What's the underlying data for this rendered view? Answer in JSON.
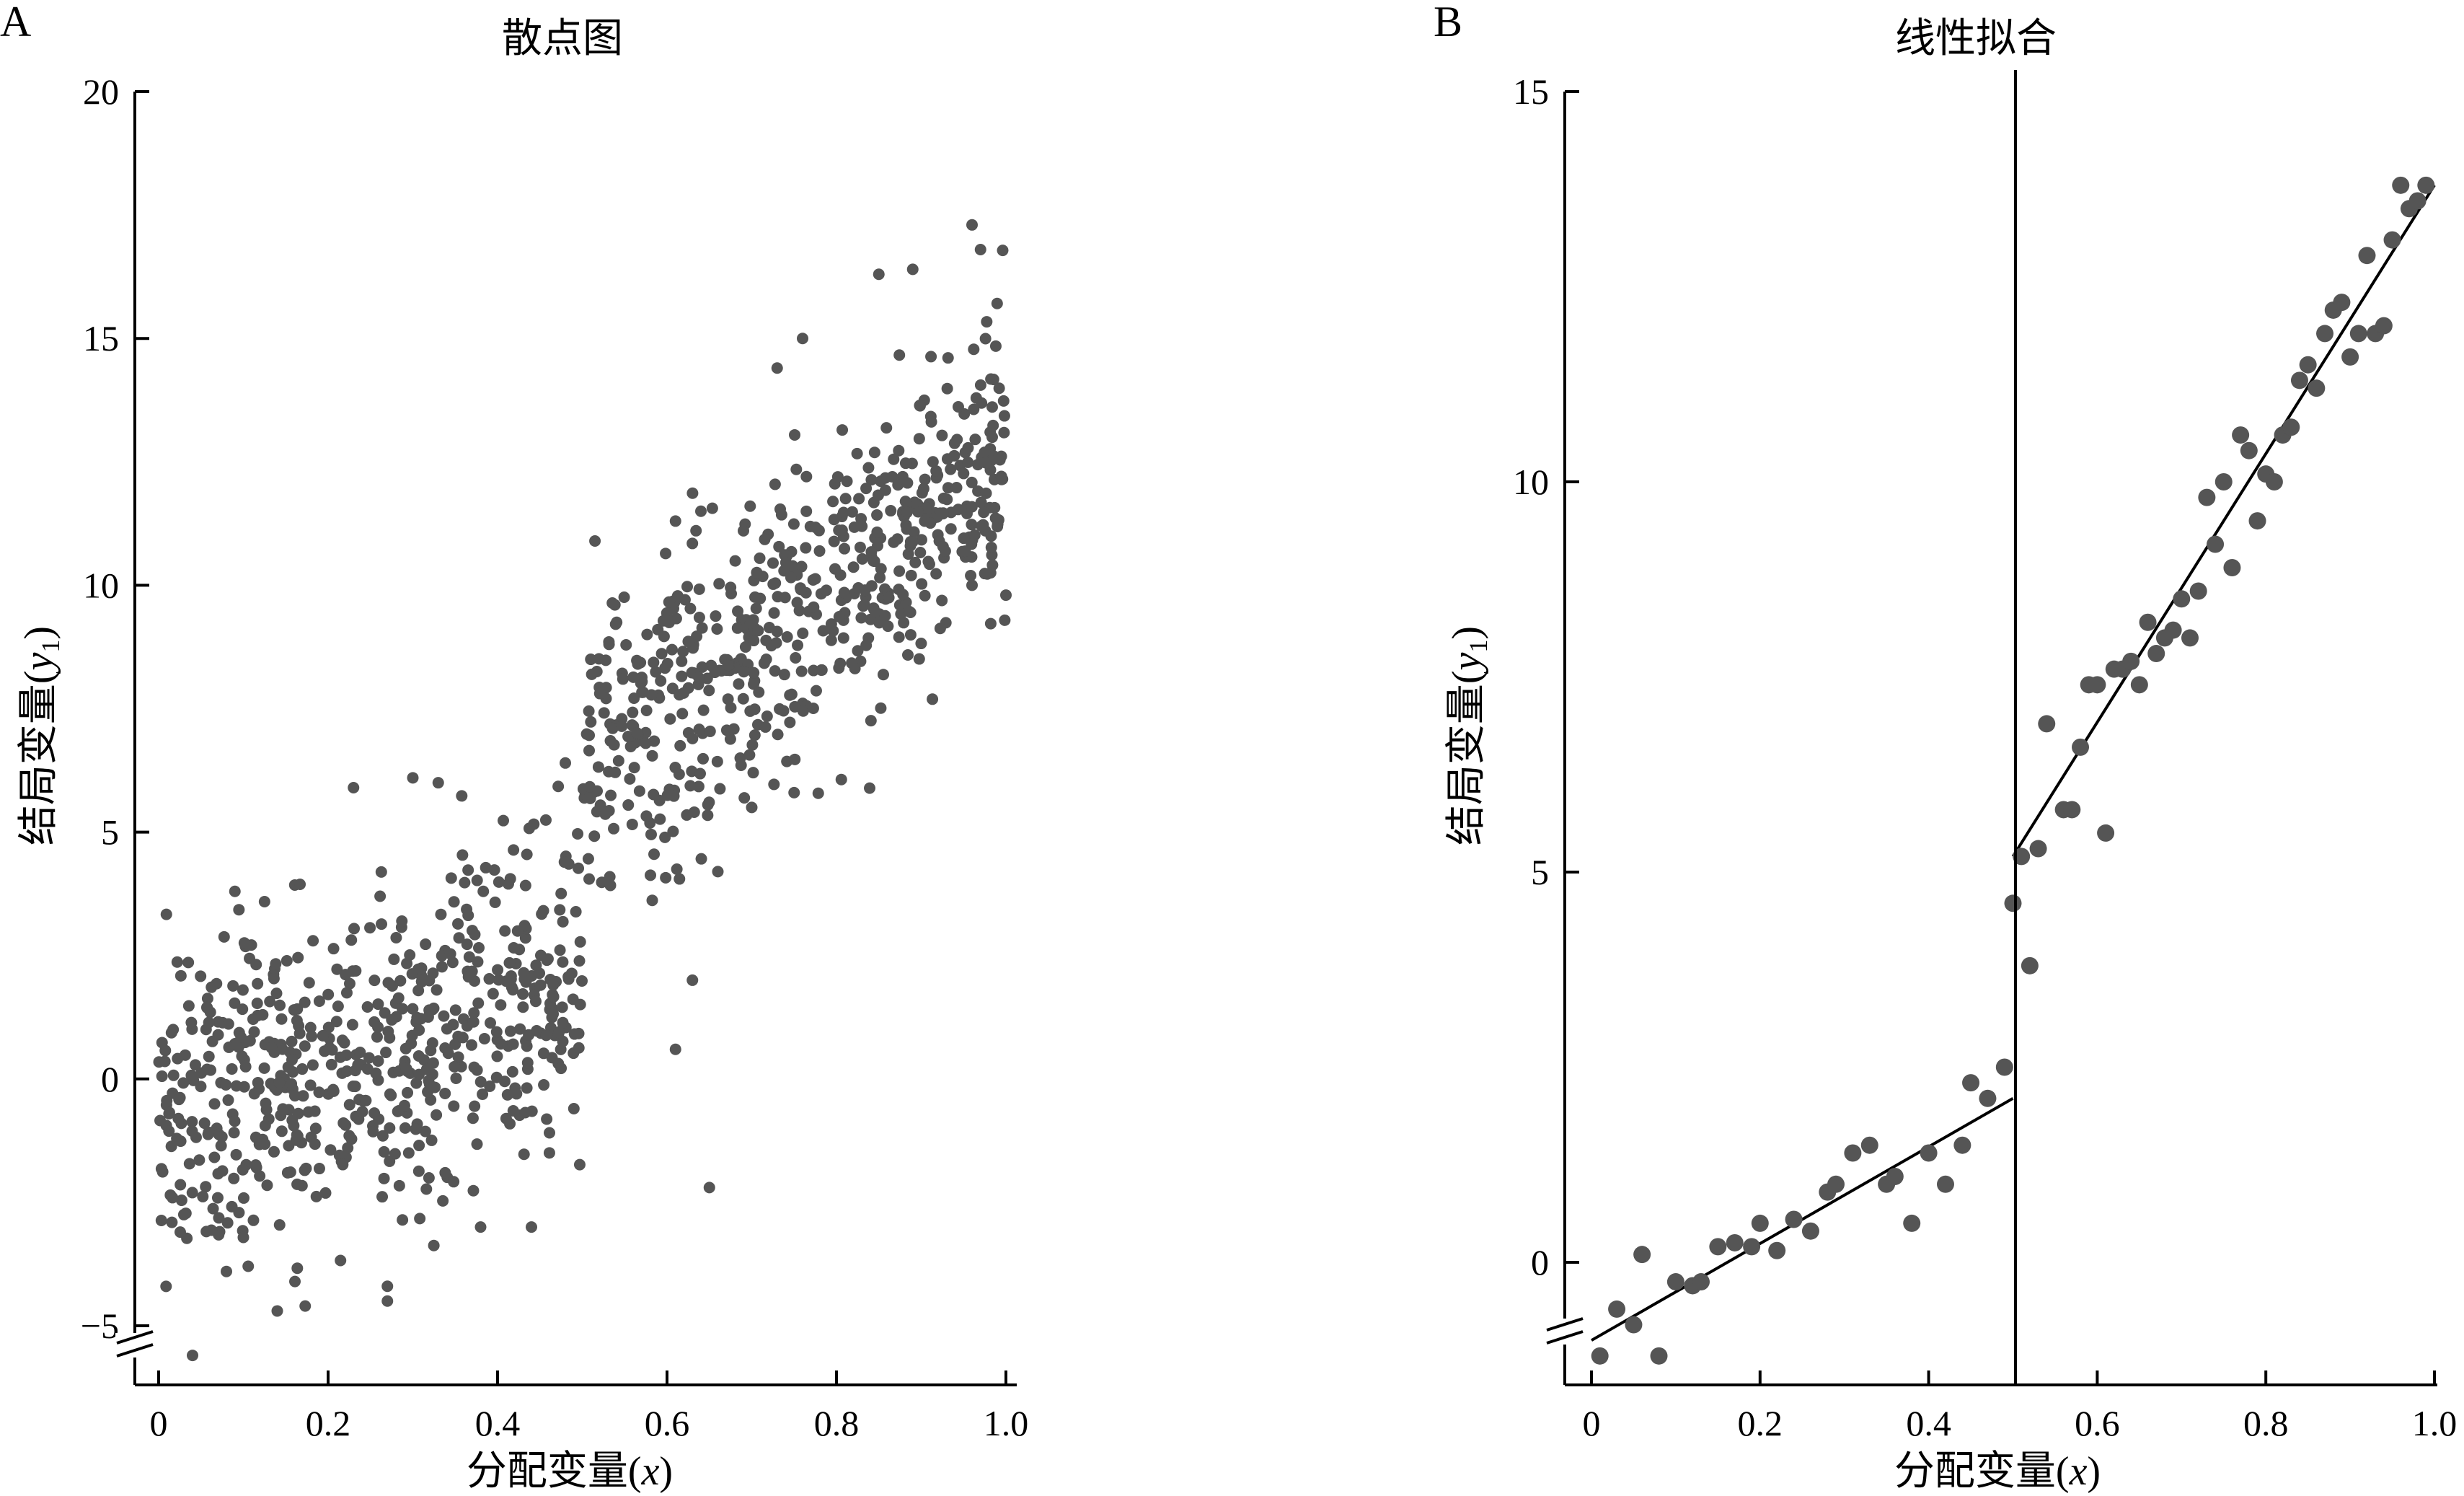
{
  "figure": {
    "panels": [
      {
        "letter": "A",
        "title": "散点图"
      },
      {
        "letter": "B",
        "title": "线性拟合"
      }
    ]
  },
  "chart_data": [
    {
      "type": "scatter",
      "title": "散点图",
      "xlabel": "分配变量",
      "xlabel_var": "x",
      "ylabel": "结局变量",
      "ylabel_var": "y",
      "ylabel_sub": "1",
      "xlim": [
        0,
        1.0
      ],
      "ylim": [
        -5,
        20
      ],
      "xticks": [
        0,
        0.2,
        0.4,
        0.6,
        0.8,
        1.0
      ],
      "xtick_labels": [
        "0",
        "0.2",
        "0.4",
        "0.6",
        "0.8",
        "1.0"
      ],
      "yticks": [
        -5,
        0,
        5,
        10,
        15,
        20
      ],
      "ytick_labels": [
        "−5",
        "0",
        "5",
        "10",
        "15",
        "20"
      ],
      "y_axis_break": true,
      "grid": false,
      "point_color": "#555555",
      "generator": {
        "n": 1200,
        "cutoff": 0.5,
        "below": {
          "intercept": -1.0,
          "slope": 6.0,
          "sd": 1.6
        },
        "above": {
          "intercept": 0.5,
          "slope": 12.0,
          "sd": 1.5
        }
      },
      "points": [
        [
          0.04,
          -5.6
        ],
        [
          0.08,
          -3.9
        ],
        [
          0.14,
          -4.7
        ],
        [
          0.27,
          -4.5
        ],
        [
          0.27,
          -4.2
        ],
        [
          0.09,
          3.8
        ],
        [
          0.23,
          5.9
        ],
        [
          0.3,
          6.1
        ],
        [
          0.33,
          6.0
        ],
        [
          0.44,
          -3.0
        ],
        [
          0.38,
          -3.0
        ],
        [
          0.61,
          0.6
        ],
        [
          0.63,
          2.0
        ],
        [
          0.65,
          -2.2
        ],
        [
          0.48,
          6.4
        ],
        [
          0.51,
          8.5
        ],
        [
          0.61,
          11.3
        ],
        [
          0.64,
          11.5
        ],
        [
          0.76,
          15.0
        ],
        [
          0.85,
          16.3
        ],
        [
          0.89,
          16.4
        ],
        [
          0.96,
          17.3
        ],
        [
          0.97,
          16.8
        ],
        [
          0.73,
          14.4
        ],
        [
          0.66,
          4.2
        ],
        [
          0.7,
          5.5
        ],
        [
          0.75,
          5.8
        ],
        [
          0.96,
          10.0
        ],
        [
          1.0,
          9.8
        ]
      ]
    },
    {
      "type": "scatter",
      "title": "线性拟合",
      "xlabel": "分配变量",
      "xlabel_var": "x",
      "ylabel": "结局变量",
      "ylabel_var": "y",
      "ylabel_sub": "1",
      "xlim": [
        0,
        1.0
      ],
      "ylim": [
        -1.5,
        15
      ],
      "xticks": [
        0,
        0.2,
        0.4,
        0.6,
        0.8,
        1.0
      ],
      "xtick_labels": [
        "0",
        "0.2",
        "0.4",
        "0.6",
        "0.8",
        "1.0"
      ],
      "yticks": [
        0,
        5,
        10,
        15
      ],
      "ytick_labels": [
        "0",
        "5",
        "10",
        "15"
      ],
      "y_axis_break": true,
      "grid": false,
      "point_color": "#555555",
      "cutoff": 0.5,
      "fit_lines": [
        {
          "x": [
            0,
            0.5
          ],
          "y": [
            -1.0,
            2.1
          ]
        },
        {
          "x": [
            0.5,
            1.0
          ],
          "y": [
            5.2,
            13.8
          ]
        }
      ],
      "points": [
        [
          0.01,
          -1.2
        ],
        [
          0.03,
          -0.6
        ],
        [
          0.05,
          -0.8
        ],
        [
          0.06,
          0.1
        ],
        [
          0.08,
          -1.2
        ],
        [
          0.1,
          -0.25
        ],
        [
          0.12,
          -0.3
        ],
        [
          0.13,
          -0.25
        ],
        [
          0.15,
          0.2
        ],
        [
          0.17,
          0.25
        ],
        [
          0.19,
          0.2
        ],
        [
          0.2,
          0.5
        ],
        [
          0.22,
          0.15
        ],
        [
          0.24,
          0.55
        ],
        [
          0.26,
          0.4
        ],
        [
          0.28,
          0.9
        ],
        [
          0.29,
          1.0
        ],
        [
          0.31,
          1.4
        ],
        [
          0.33,
          1.5
        ],
        [
          0.35,
          1.0
        ],
        [
          0.36,
          1.1
        ],
        [
          0.38,
          0.5
        ],
        [
          0.4,
          1.4
        ],
        [
          0.42,
          1.0
        ],
        [
          0.44,
          1.5
        ],
        [
          0.45,
          2.3
        ],
        [
          0.47,
          2.1
        ],
        [
          0.49,
          2.5
        ],
        [
          0.5,
          4.6
        ],
        [
          0.51,
          5.2
        ],
        [
          0.52,
          3.8
        ],
        [
          0.53,
          5.3
        ],
        [
          0.54,
          6.9
        ],
        [
          0.56,
          5.8
        ],
        [
          0.57,
          5.8
        ],
        [
          0.58,
          6.6
        ],
        [
          0.59,
          7.4
        ],
        [
          0.6,
          7.4
        ],
        [
          0.61,
          5.5
        ],
        [
          0.62,
          7.6
        ],
        [
          0.63,
          7.6
        ],
        [
          0.64,
          7.7
        ],
        [
          0.65,
          7.4
        ],
        [
          0.66,
          8.2
        ],
        [
          0.67,
          7.8
        ],
        [
          0.68,
          8.0
        ],
        [
          0.69,
          8.1
        ],
        [
          0.7,
          8.5
        ],
        [
          0.71,
          8.0
        ],
        [
          0.72,
          8.6
        ],
        [
          0.73,
          9.8
        ],
        [
          0.74,
          9.2
        ],
        [
          0.75,
          10.0
        ],
        [
          0.76,
          8.9
        ],
        [
          0.77,
          10.6
        ],
        [
          0.78,
          10.4
        ],
        [
          0.79,
          9.5
        ],
        [
          0.8,
          10.1
        ],
        [
          0.81,
          10.0
        ],
        [
          0.82,
          10.6
        ],
        [
          0.83,
          10.7
        ],
        [
          0.84,
          11.3
        ],
        [
          0.85,
          11.5
        ],
        [
          0.86,
          11.2
        ],
        [
          0.87,
          11.9
        ],
        [
          0.88,
          12.2
        ],
        [
          0.89,
          12.3
        ],
        [
          0.9,
          11.6
        ],
        [
          0.91,
          11.9
        ],
        [
          0.92,
          12.9
        ],
        [
          0.93,
          11.9
        ],
        [
          0.94,
          12.0
        ],
        [
          0.95,
          13.1
        ],
        [
          0.96,
          13.8
        ],
        [
          0.97,
          13.5
        ],
        [
          0.98,
          13.6
        ],
        [
          0.99,
          13.8
        ]
      ]
    }
  ]
}
